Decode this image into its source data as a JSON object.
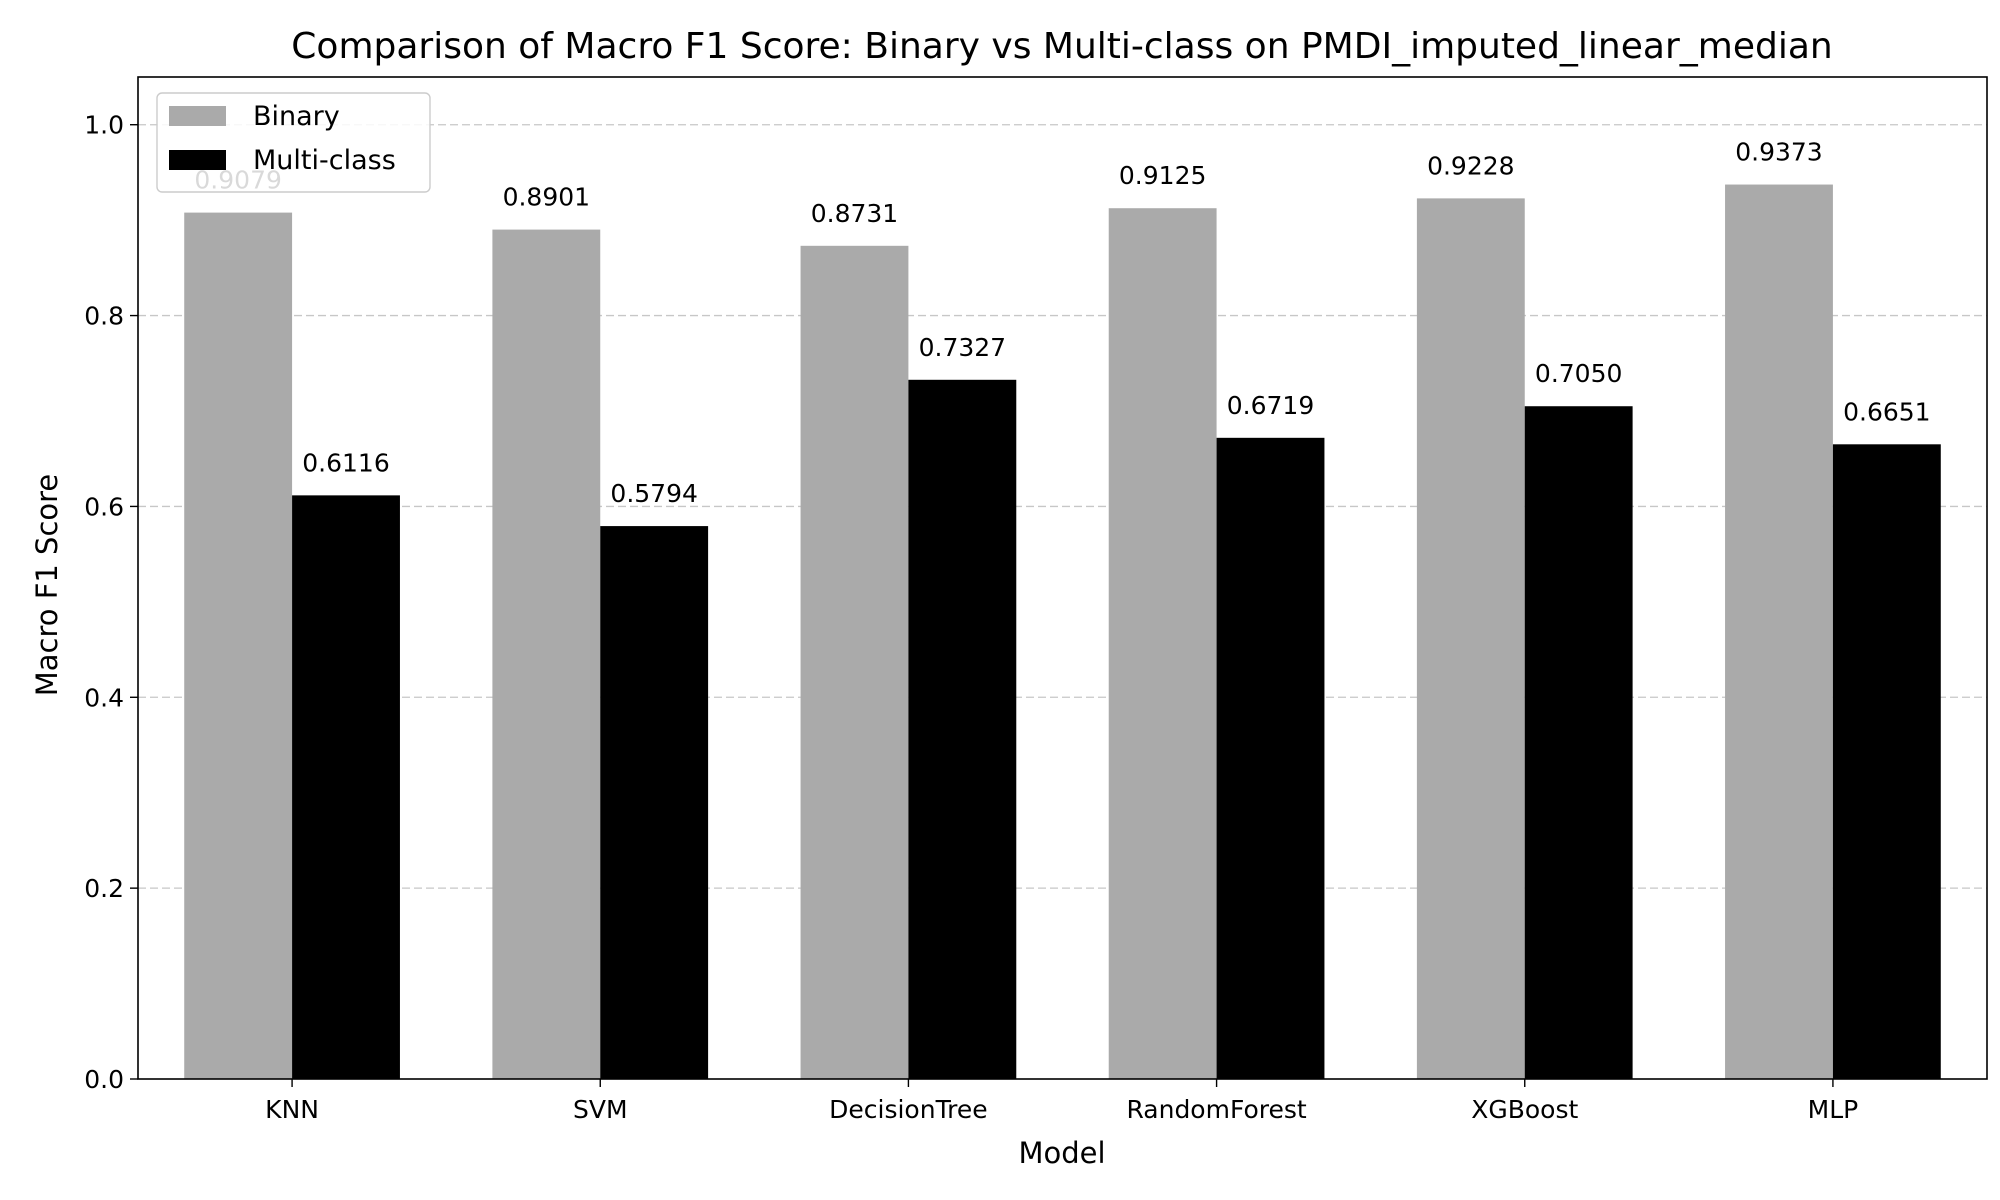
{
  "chart_data": {
    "type": "bar",
    "title": "Comparison of Macro F1 Score: Binary vs Multi-class on PMDI_imputed_linear_median",
    "xlabel": "Model",
    "ylabel": "Macro F1 Score",
    "categories": [
      "KNN",
      "SVM",
      "DecisionTree",
      "RandomForest",
      "XGBoost",
      "MLP"
    ],
    "series": [
      {
        "name": "Binary",
        "color": "#aaaaaa",
        "values": [
          0.9079,
          0.8901,
          0.8731,
          0.9125,
          0.9228,
          0.9373
        ],
        "labels": [
          "0.9079",
          "0.8901",
          "0.8731",
          "0.9125",
          "0.9228",
          "0.9373"
        ]
      },
      {
        "name": "Multi-class",
        "color": "#000000",
        "values": [
          0.6116,
          0.5794,
          0.7327,
          0.6719,
          0.705,
          0.6651
        ],
        "labels": [
          "0.6116",
          "0.5794",
          "0.7327",
          "0.6719",
          "0.7050",
          "0.6651"
        ]
      }
    ],
    "ylim": [
      0,
      1.05
    ],
    "yticks": [
      0.0,
      0.2,
      0.4,
      0.6,
      0.8,
      1.0
    ],
    "ytick_labels": [
      "0.0",
      "0.2",
      "0.4",
      "0.6",
      "0.8",
      "1.0"
    ],
    "grid": "y-dashed",
    "legend_position": "upper-left"
  }
}
